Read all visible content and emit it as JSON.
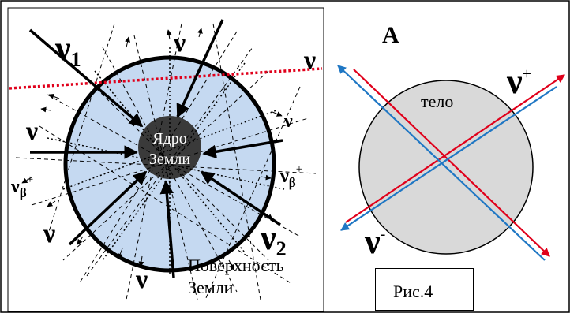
{
  "labels": {
    "nu1": {
      "sym": "ν",
      "sub": "1"
    },
    "nu2": {
      "sym": "ν",
      "sub": "2"
    },
    "nu_top": "ν",
    "nu_right": "ν",
    "nu_right2": "ν",
    "nu_left": "ν",
    "nu_left2": "ν",
    "nu_bottom": "ν",
    "nu_beta_left": {
      "sym": "ν",
      "sub": "β",
      "sup": "+"
    },
    "nu_beta_right": {
      "sym": "ν",
      "sub": "β",
      "sup": "+"
    },
    "core": "Ядро Земли",
    "surface": "Поверхность Земли",
    "panel_a": "А",
    "body": "тело",
    "nu_plus": {
      "sym": "ν",
      "sup": "+"
    },
    "nu_minus": {
      "sym": "ν",
      "sup": "-"
    },
    "caption": "Рис.4"
  },
  "colors": {
    "earth_fill": "#c5d9f1",
    "core_fill": "#3a3a3a",
    "body_fill": "#d9d9d9",
    "red": "#e0001b",
    "blue": "#1f77c4",
    "dotted_red": "#e0001b"
  }
}
